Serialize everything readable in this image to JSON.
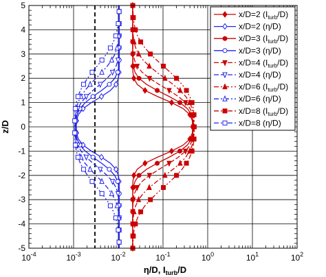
{
  "chart_data": {
    "type": "line",
    "xlabel": "η/D, I_turb/D",
    "ylabel": "z/D",
    "xscale": "log",
    "xlim": [
      0.0001,
      100
    ],
    "ylim": [
      -5,
      5
    ],
    "x_ticks": [
      {
        "base": "10",
        "exp": "-4",
        "value": 0.0001
      },
      {
        "base": "10",
        "exp": "-3",
        "value": 0.001
      },
      {
        "base": "10",
        "exp": "-2",
        "value": 0.01
      },
      {
        "base": "10",
        "exp": "-1",
        "value": 0.1
      },
      {
        "base": "10",
        "exp": "0",
        "value": 1
      },
      {
        "base": "10",
        "exp": "1",
        "value": 10
      },
      {
        "base": "10",
        "exp": "2",
        "value": 100
      }
    ],
    "y_ticks": [
      "-5",
      "-4",
      "-3",
      "-2",
      "-1",
      "0",
      "1",
      "2",
      "3",
      "4",
      "5"
    ],
    "grid": true,
    "legend_position": "top-right",
    "reference_line": {
      "x": 0.003,
      "style": "dashed",
      "color": "#000000"
    },
    "colors": {
      "red": "#cc0000",
      "blue": "#2222ee"
    },
    "series": [
      {
        "name_main": "x/D=2 (",
        "name_sym": "I",
        "name_sub": "turb",
        "name_end": "/D)",
        "quantity": "I",
        "x_over_D": 2,
        "color": "#cc0000",
        "dash": "solid",
        "marker": "diamond",
        "filled": true
      },
      {
        "name_main": "x/D=2 (",
        "name_sym": "η",
        "name_sub": "",
        "name_end": "/D)",
        "quantity": "eta",
        "x_over_D": 2,
        "color": "#2222ee",
        "dash": "solid",
        "marker": "diamond",
        "filled": false
      },
      {
        "name_main": "x/D=3 (",
        "name_sym": "I",
        "name_sub": "turb",
        "name_end": "/D)",
        "quantity": "I",
        "x_over_D": 3,
        "color": "#cc0000",
        "dash": "solid",
        "marker": "circle",
        "filled": true
      },
      {
        "name_main": "x/D=3 (",
        "name_sym": "η",
        "name_sub": "",
        "name_end": "/D)",
        "quantity": "eta",
        "x_over_D": 3,
        "color": "#2222ee",
        "dash": "solid",
        "marker": "circle",
        "filled": false
      },
      {
        "name_main": "x/D=4 (",
        "name_sym": "I",
        "name_sub": "turb",
        "name_end": "/D)",
        "quantity": "I",
        "x_over_D": 4,
        "color": "#cc0000",
        "dash": "dash",
        "marker": "triangle-down",
        "filled": true
      },
      {
        "name_main": "x/D=4 (",
        "name_sym": "η",
        "name_sub": "",
        "name_end": "/D)",
        "quantity": "eta",
        "x_over_D": 4,
        "color": "#2222ee",
        "dash": "dash",
        "marker": "triangle-down",
        "filled": false
      },
      {
        "name_main": "x/D=6 (",
        "name_sym": "I",
        "name_sub": "turb",
        "name_end": "/D)",
        "quantity": "I",
        "x_over_D": 6,
        "color": "#cc0000",
        "dash": "dashdot",
        "marker": "triangle-up",
        "filled": true
      },
      {
        "name_main": "x/D=6 (",
        "name_sym": "η",
        "name_sub": "",
        "name_end": "/D)",
        "quantity": "eta",
        "x_over_D": 6,
        "color": "#2222ee",
        "dash": "dashdot",
        "marker": "triangle-up",
        "filled": false
      },
      {
        "name_main": "x/D=8 (",
        "name_sym": "I",
        "name_sub": "turb",
        "name_end": "/D)",
        "quantity": "I",
        "x_over_D": 8,
        "color": "#cc0000",
        "dash": "dashdotdot",
        "marker": "square",
        "filled": true
      },
      {
        "name_main": "x/D=8 (",
        "name_sym": "η",
        "name_sub": "",
        "name_end": "/D)",
        "quantity": "eta",
        "x_over_D": 8,
        "color": "#2222ee",
        "dash": "dashdotdot",
        "marker": "square",
        "filled": false
      }
    ]
  }
}
